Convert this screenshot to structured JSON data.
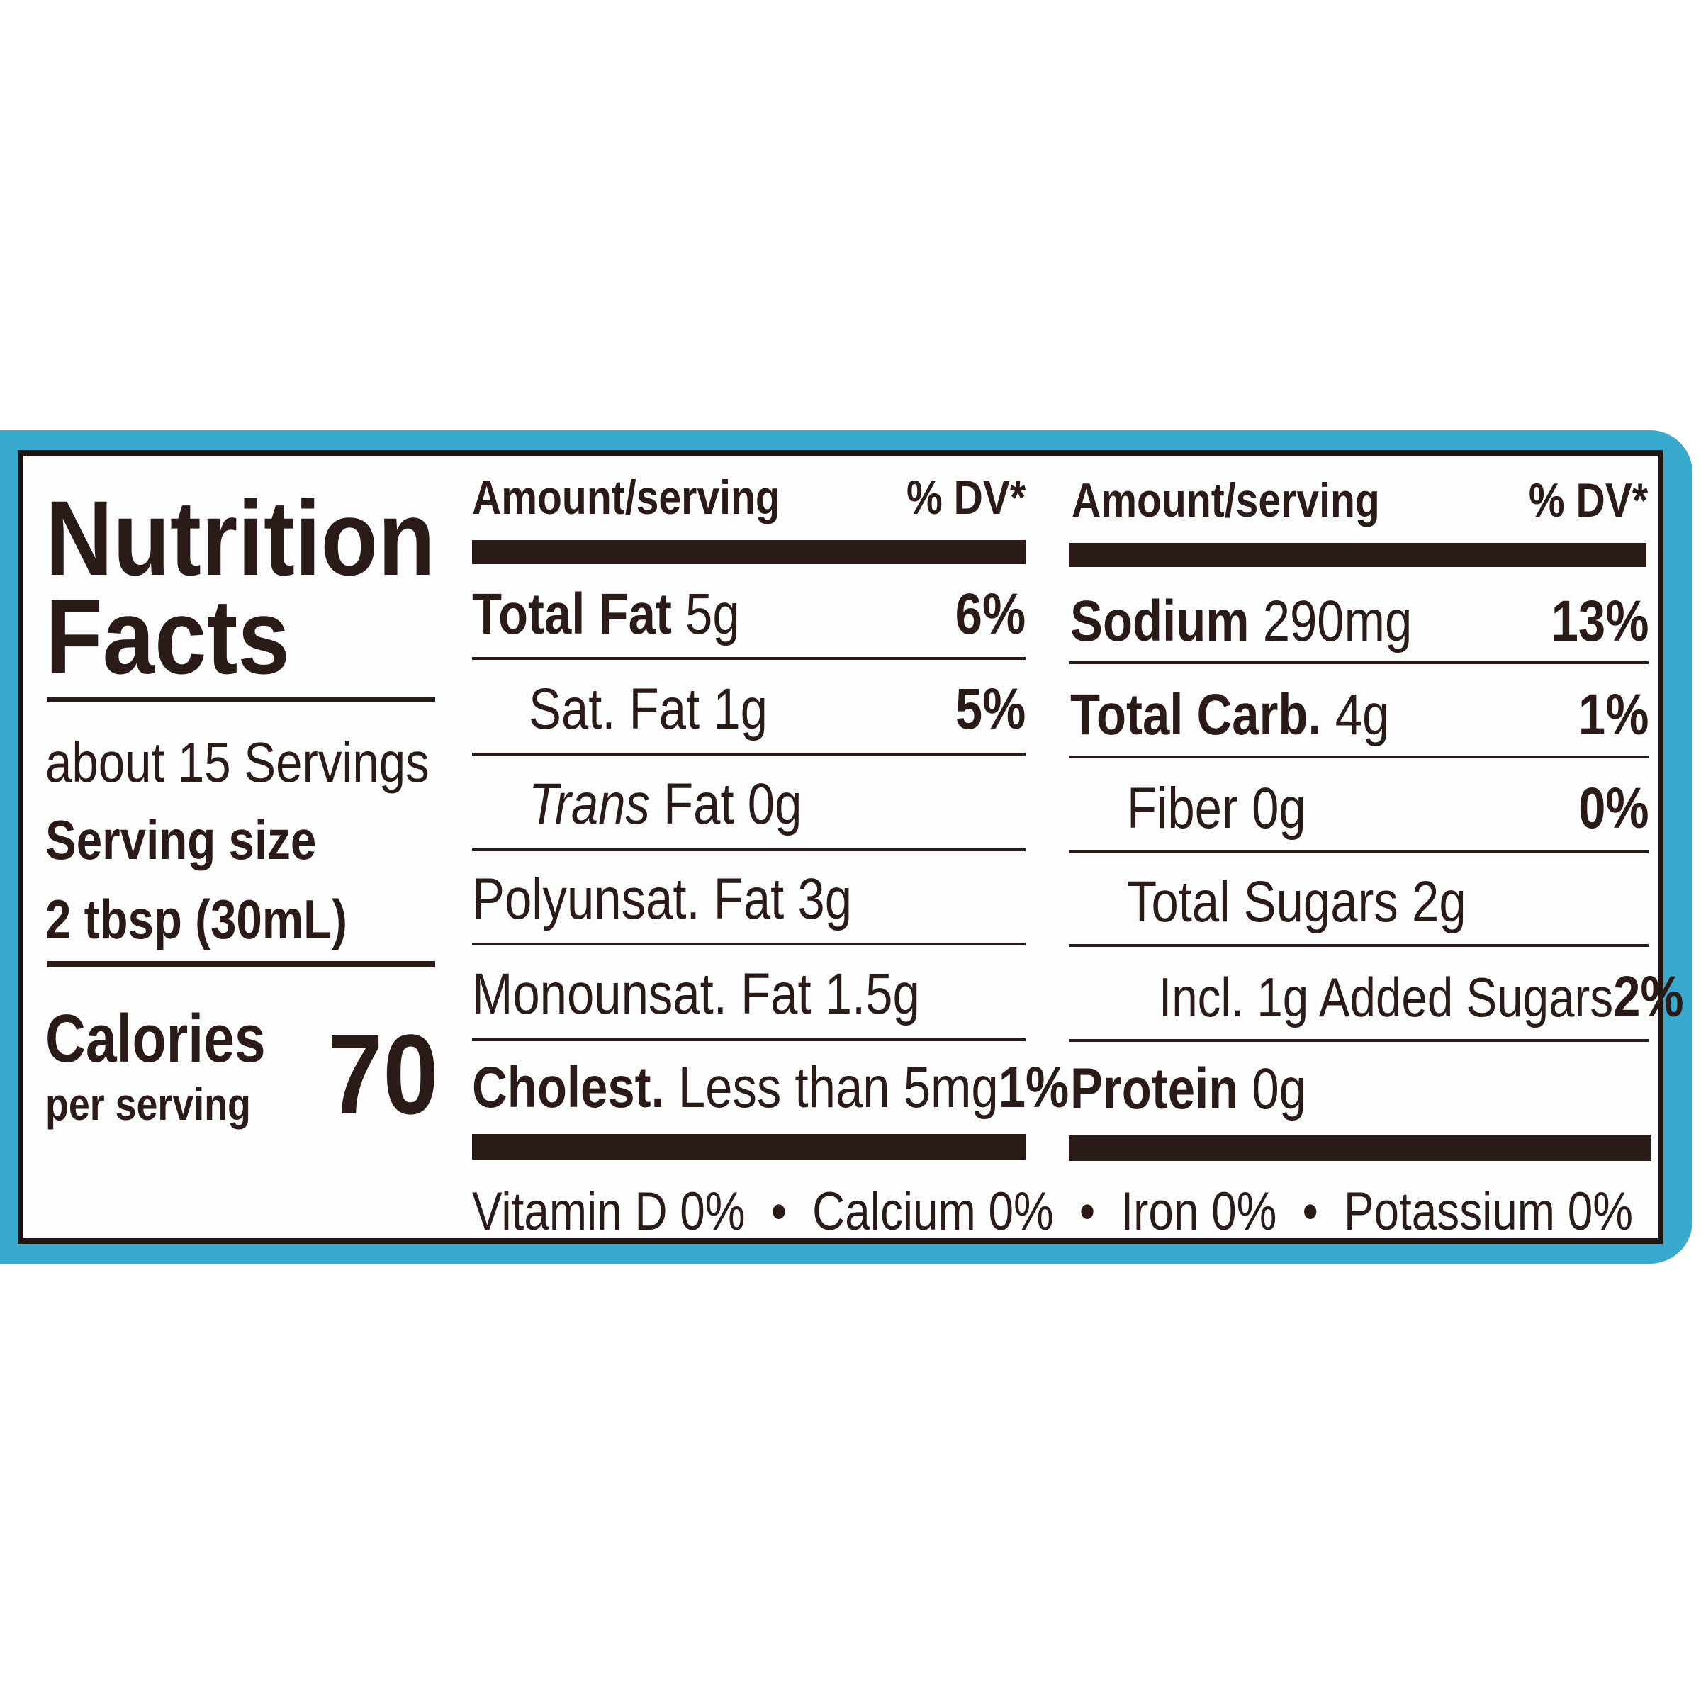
{
  "colors": {
    "band": "#37aacd",
    "ink": "#2b1b18"
  },
  "title": {
    "line1": "Nutrition",
    "line2": "Facts"
  },
  "servings": {
    "per_container": "about 15 Servings",
    "size_label": "Serving size",
    "size_value": "2 tbsp (30mL)"
  },
  "calories": {
    "label": "Calories",
    "sublabel": "per serving",
    "value": "70"
  },
  "left_table": {
    "header_amount": "Amount/serving",
    "header_dv": "% DV*",
    "rows": [
      {
        "bold": "Total Fat",
        "text": " 5g",
        "dv": "6%"
      },
      {
        "bold": "",
        "text": "Sat. Fat 1g",
        "dv": "5%"
      },
      {
        "italic": "Trans",
        "text": " Fat 0g",
        "dv": ""
      },
      {
        "bold": "",
        "text": "Polyunsat. Fat 3g",
        "dv": ""
      },
      {
        "bold": "",
        "text": "Monounsat. Fat 1.5g",
        "dv": ""
      },
      {
        "bold": "Cholest.",
        "text": " Less than 5mg",
        "dv": "1%"
      }
    ]
  },
  "right_table": {
    "header_amount": "Amount/serving",
    "header_dv": "% DV*",
    "rows": [
      {
        "bold": "Sodium",
        "text": " 290mg",
        "dv": "13%"
      },
      {
        "bold": "Total Carb.",
        "text": " 4g",
        "dv": "1%"
      },
      {
        "bold": "",
        "text": "Fiber 0g",
        "dv": "0%"
      },
      {
        "bold": "",
        "text": "Total Sugars 2g",
        "dv": ""
      },
      {
        "bold": "",
        "text": "Incl. 1g Added Sugars",
        "dv": "2%"
      },
      {
        "bold": "Protein",
        "text": " 0g",
        "dv": ""
      }
    ]
  },
  "footer": {
    "items": [
      "Vitamin D 0%",
      "Calcium 0%",
      "Iron 0%",
      "Potassium 0%"
    ],
    "separator": "•"
  }
}
